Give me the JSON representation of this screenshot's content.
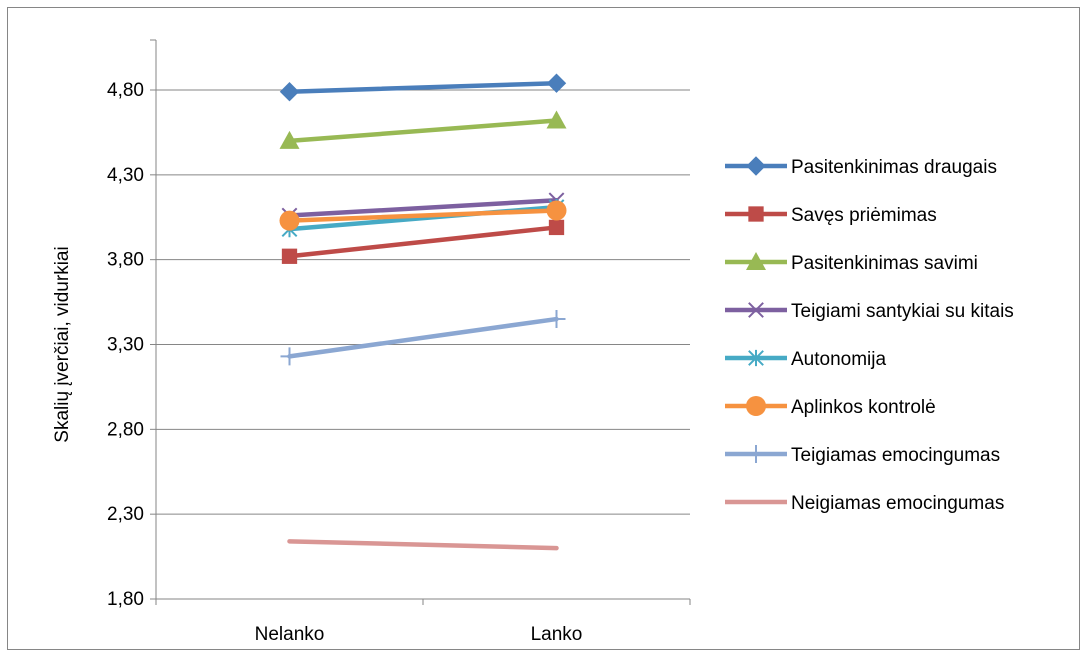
{
  "chart_data": {
    "type": "line",
    "categories": [
      "Nelanko",
      "Lanko"
    ],
    "ylabel": "Skalių įverčiai, vidurkiai",
    "ylim": [
      1.8,
      4.8
    ],
    "yticks": [
      "1,80",
      "2,30",
      "2,80",
      "3,30",
      "3,80",
      "4,30",
      "4,80"
    ],
    "ytick_values": [
      1.8,
      2.3,
      2.8,
      3.3,
      3.8,
      4.3,
      4.8
    ],
    "grid": true,
    "legend_position": "right",
    "series": [
      {
        "name": "Pasitenkinimas draugais",
        "values": [
          4.79,
          4.84
        ],
        "color": "#4A7EBB",
        "marker": "diamond"
      },
      {
        "name": "Savęs priėmimas",
        "values": [
          3.82,
          3.99
        ],
        "color": "#BE4B48",
        "marker": "square"
      },
      {
        "name": "Pasitenkinimas savimi",
        "values": [
          4.5,
          4.62
        ],
        "color": "#98B954",
        "marker": "triangle"
      },
      {
        "name": "Teigiami santykiai su kitais",
        "values": [
          4.06,
          4.15
        ],
        "color": "#7D60A0",
        "marker": "x"
      },
      {
        "name": "Autonomija",
        "values": [
          3.98,
          4.11
        ],
        "color": "#46AAC5",
        "marker": "asterisk"
      },
      {
        "name": "Aplinkos kontrolė",
        "values": [
          4.03,
          4.09
        ],
        "color": "#F69240",
        "marker": "circle"
      },
      {
        "name": "Teigiamas emocingumas",
        "values": [
          3.23,
          3.45
        ],
        "color": "#8BA7D2",
        "marker": "plus"
      },
      {
        "name": "Neigiamas emocingumas",
        "values": [
          2.14,
          2.1
        ],
        "color": "#D99694",
        "marker": "none"
      }
    ]
  }
}
